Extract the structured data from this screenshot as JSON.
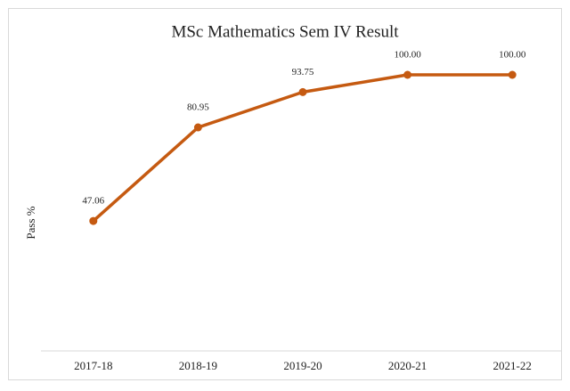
{
  "chart_data": {
    "type": "line",
    "title": "MSc Mathematics Sem IV Result",
    "y_label": "Pass %",
    "categories": [
      "2017-18",
      "2018-19",
      "2019-20",
      "2020-21",
      "2021-22"
    ],
    "series": [
      {
        "name": "Pass %",
        "color": "#c55a11",
        "values": [
          47.06,
          80.95,
          93.75,
          100,
          100
        ],
        "value_labels": [
          "47.06",
          "80.95",
          "93.75",
          "100.00",
          "100.00"
        ]
      }
    ],
    "ylim": [
      0,
      120
    ]
  }
}
